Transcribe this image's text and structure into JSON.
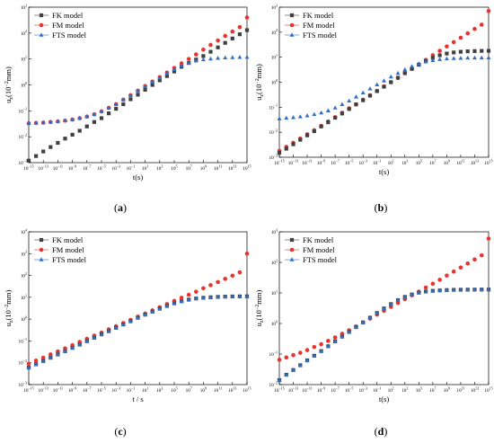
{
  "legend": [
    "FK model",
    "FM model",
    "FTS model"
  ],
  "colors": {
    "FK": "#404040",
    "FM": "#e8332f",
    "FTS": "#2f6fc4"
  },
  "chart_data": [
    {
      "type": "scatter",
      "panel_label": "(a)",
      "xlabel": "t(s)",
      "ylabel": "u_z(10^-2 mm)",
      "xscale": "log",
      "yscale": "log",
      "xlim": [
        1e-15,
        1000000000000000.0
      ],
      "ylim": [
        0.001,
        1000
      ],
      "x_tick_exponents": [
        -15,
        -13,
        -11,
        -9,
        -7,
        -5,
        -3,
        -1,
        1,
        3,
        5,
        7,
        9,
        11,
        13,
        15
      ],
      "y_tick_exponents": [
        -3,
        -2,
        -1,
        0,
        1,
        2,
        3
      ],
      "x": [
        1e-15,
        1e-14,
        1e-13,
        1e-12,
        1e-11,
        1e-10,
        1e-09,
        1e-08,
        1e-07,
        1e-06,
        1e-05,
        0.0001,
        0.001,
        0.01,
        0.1,
        1,
        10,
        100,
        1000,
        10000,
        100000,
        1000000.0,
        10000000.0,
        100000000.0,
        1000000000.0,
        10000000000.0,
        100000000000.0,
        1000000000000.0,
        10000000000000.0,
        100000000000000.0,
        1000000000000000.0
      ],
      "series": [
        {
          "name": "FK model",
          "values": [
            0.0012,
            0.0018,
            0.0027,
            0.004,
            0.0058,
            0.0085,
            0.012,
            0.017,
            0.025,
            0.037,
            0.052,
            0.08,
            0.12,
            0.18,
            0.28,
            0.42,
            0.65,
            1.0,
            1.5,
            2.2,
            3.3,
            5.0,
            7.0,
            9.5,
            13,
            19,
            28,
            42,
            62,
            90,
            130
          ]
        },
        {
          "name": "FM model",
          "values": [
            0.033,
            0.034,
            0.035,
            0.037,
            0.039,
            0.042,
            0.046,
            0.052,
            0.06,
            0.073,
            0.095,
            0.13,
            0.18,
            0.27,
            0.4,
            0.6,
            0.9,
            1.35,
            2.0,
            3.0,
            4.5,
            6.8,
            10,
            15,
            23,
            35,
            52,
            78,
            115,
            170,
            400
          ]
        },
        {
          "name": "FTS model",
          "values": [
            0.033,
            0.034,
            0.035,
            0.037,
            0.039,
            0.042,
            0.046,
            0.052,
            0.06,
            0.073,
            0.095,
            0.13,
            0.18,
            0.27,
            0.4,
            0.6,
            0.9,
            1.3,
            1.9,
            2.8,
            4.0,
            5.5,
            7.0,
            8.5,
            9.5,
            10.2,
            10.8,
            11.2,
            11.5,
            11.7,
            11.8
          ]
        }
      ]
    },
    {
      "type": "scatter",
      "panel_label": "(b)",
      "xlabel": "t(s)",
      "ylabel": "u_z(10^-2 mm)",
      "xscale": "log",
      "yscale": "log",
      "xlim": [
        1e-15,
        1000000000000000.0
      ],
      "ylim": [
        0.001,
        1000
      ],
      "x_tick_exponents": [
        -15,
        -13,
        -11,
        -9,
        -7,
        -5,
        -3,
        -1,
        1,
        3,
        5,
        7,
        9,
        11,
        13,
        15
      ],
      "y_tick_exponents": [
        -3,
        -2,
        -1,
        0,
        1,
        2,
        3
      ],
      "x": [
        1e-15,
        1e-14,
        1e-13,
        1e-12,
        1e-11,
        1e-10,
        1e-09,
        1e-08,
        1e-07,
        1e-06,
        1e-05,
        0.0001,
        0.001,
        0.01,
        0.1,
        1,
        10,
        100,
        1000,
        10000,
        100000,
        1000000.0,
        10000000.0,
        100000000.0,
        1000000000.0,
        10000000000.0,
        100000000000.0,
        1000000000000.0,
        10000000000000.0,
        100000000000000.0,
        1000000000000000.0
      ],
      "series": [
        {
          "name": "FK model",
          "values": [
            0.0015,
            0.0022,
            0.0033,
            0.005,
            0.0075,
            0.011,
            0.017,
            0.025,
            0.038,
            0.056,
            0.085,
            0.13,
            0.19,
            0.29,
            0.44,
            0.66,
            1.0,
            1.5,
            2.3,
            3.4,
            5.0,
            7.0,
            9.5,
            12,
            14,
            15.5,
            16.5,
            17.2,
            17.6,
            17.9,
            18
          ]
        },
        {
          "name": "FM model",
          "values": [
            0.0018,
            0.0026,
            0.0038,
            0.0056,
            0.0083,
            0.012,
            0.018,
            0.027,
            0.04,
            0.06,
            0.09,
            0.13,
            0.2,
            0.3,
            0.45,
            0.68,
            1.0,
            1.5,
            2.3,
            3.5,
            5.2,
            7.8,
            12,
            18,
            27,
            40,
            60,
            90,
            135,
            200,
            700
          ]
        },
        {
          "name": "FTS model",
          "values": [
            0.035,
            0.037,
            0.039,
            0.042,
            0.046,
            0.052,
            0.06,
            0.073,
            0.095,
            0.13,
            0.18,
            0.26,
            0.38,
            0.55,
            0.8,
            1.15,
            1.65,
            2.3,
            3.2,
            4.3,
            5.5,
            6.6,
            7.5,
            8.2,
            8.7,
            9.0,
            9.2,
            9.35,
            9.45,
            9.5,
            9.55
          ]
        }
      ]
    },
    {
      "type": "scatter",
      "panel_label": "(c)",
      "xlabel": "t / s",
      "ylabel": "u_z(10^-2 mm)",
      "xscale": "log",
      "yscale": "log",
      "xlim": [
        1e-15,
        1000000000000000.0
      ],
      "ylim": [
        0.001,
        10000
      ],
      "x_tick_exponents": [
        -15,
        -13,
        -11,
        -9,
        -7,
        -5,
        -3,
        -1,
        1,
        3,
        5,
        7,
        9,
        11,
        13,
        15
      ],
      "y_tick_exponents": [
        -3,
        -2,
        -1,
        0,
        1,
        2,
        3,
        4
      ],
      "x": [
        1e-15,
        1e-14,
        1e-13,
        1e-12,
        1e-11,
        1e-10,
        1e-09,
        1e-08,
        1e-07,
        1e-06,
        1e-05,
        0.0001,
        0.001,
        0.01,
        0.1,
        1,
        10,
        100,
        1000,
        10000,
        100000,
        1000000.0,
        10000000.0,
        100000000.0,
        1000000000.0,
        10000000000.0,
        100000000000.0,
        1000000000000.0,
        10000000000000.0,
        100000000000000.0,
        1000000000000000.0
      ],
      "series": [
        {
          "name": "FK model",
          "values": [
            0.006,
            0.0085,
            0.012,
            0.017,
            0.024,
            0.034,
            0.048,
            0.068,
            0.097,
            0.14,
            0.2,
            0.28,
            0.4,
            0.57,
            0.8,
            1.15,
            1.6,
            2.2,
            3.0,
            4.0,
            5.3,
            6.6,
            7.8,
            8.8,
            9.5,
            10,
            10.4,
            10.7,
            10.9,
            11,
            11.1
          ]
        },
        {
          "name": "FM model",
          "values": [
            0.009,
            0.0125,
            0.017,
            0.024,
            0.033,
            0.046,
            0.064,
            0.09,
            0.125,
            0.175,
            0.24,
            0.34,
            0.47,
            0.66,
            0.92,
            1.3,
            1.8,
            2.5,
            3.5,
            4.9,
            6.8,
            9.5,
            13,
            18,
            26,
            36,
            50,
            70,
            98,
            140,
            1000
          ]
        },
        {
          "name": "FTS model",
          "values": [
            0.006,
            0.0085,
            0.012,
            0.017,
            0.024,
            0.034,
            0.048,
            0.068,
            0.097,
            0.14,
            0.2,
            0.28,
            0.4,
            0.57,
            0.8,
            1.15,
            1.6,
            2.2,
            3.0,
            4.0,
            5.3,
            6.6,
            7.8,
            8.8,
            9.5,
            10,
            10.4,
            10.7,
            10.9,
            11,
            11.1
          ]
        }
      ]
    },
    {
      "type": "scatter",
      "panel_label": "(d)",
      "xlabel": "t(s)",
      "ylabel": "u_z(10^-2 mm)",
      "xscale": "log",
      "yscale": "log",
      "xlim": [
        1e-15,
        1000000000000000.0
      ],
      "ylim": [
        0.01,
        1000
      ],
      "x_tick_exponents": [
        -15,
        -13,
        -11,
        -9,
        -7,
        -5,
        -3,
        -1,
        1,
        3,
        5,
        7,
        9,
        11,
        13,
        15
      ],
      "y_tick_exponents": [
        -2,
        -1,
        0,
        1,
        2,
        3
      ],
      "x": [
        1e-15,
        1e-14,
        1e-13,
        1e-12,
        1e-11,
        1e-10,
        1e-09,
        1e-08,
        1e-07,
        1e-06,
        1e-05,
        0.0001,
        0.001,
        0.01,
        0.1,
        1,
        10,
        100,
        1000,
        10000,
        100000,
        1000000.0,
        10000000.0,
        100000000.0,
        1000000000.0,
        10000000000.0,
        100000000000.0,
        1000000000000.0,
        10000000000000.0,
        100000000000000.0,
        1000000000000000.0
      ],
      "series": [
        {
          "name": "FK model",
          "values": [
            0.014,
            0.021,
            0.03,
            0.043,
            0.062,
            0.088,
            0.125,
            0.18,
            0.26,
            0.37,
            0.53,
            0.76,
            1.08,
            1.55,
            2.2,
            3.1,
            4.3,
            5.8,
            7.4,
            8.9,
            10.2,
            11.1,
            11.7,
            12.1,
            12.4,
            12.6,
            12.7,
            12.8,
            12.85,
            12.9,
            12.9
          ]
        },
        {
          "name": "FM model",
          "values": [
            0.065,
            0.077,
            0.092,
            0.11,
            0.135,
            0.17,
            0.21,
            0.27,
            0.35,
            0.46,
            0.6,
            0.8,
            1.08,
            1.45,
            1.95,
            2.6,
            3.5,
            4.7,
            6.3,
            8.4,
            11,
            15,
            20,
            27,
            37,
            50,
            68,
            92,
            125,
            170,
            600
          ]
        },
        {
          "name": "FTS model",
          "values": [
            0.014,
            0.021,
            0.03,
            0.043,
            0.062,
            0.088,
            0.125,
            0.18,
            0.26,
            0.37,
            0.53,
            0.76,
            1.08,
            1.55,
            2.2,
            3.1,
            4.3,
            5.8,
            7.4,
            8.9,
            10.2,
            11.1,
            11.7,
            12.1,
            12.4,
            12.6,
            12.7,
            12.8,
            12.85,
            12.9,
            12.9
          ]
        }
      ]
    }
  ]
}
